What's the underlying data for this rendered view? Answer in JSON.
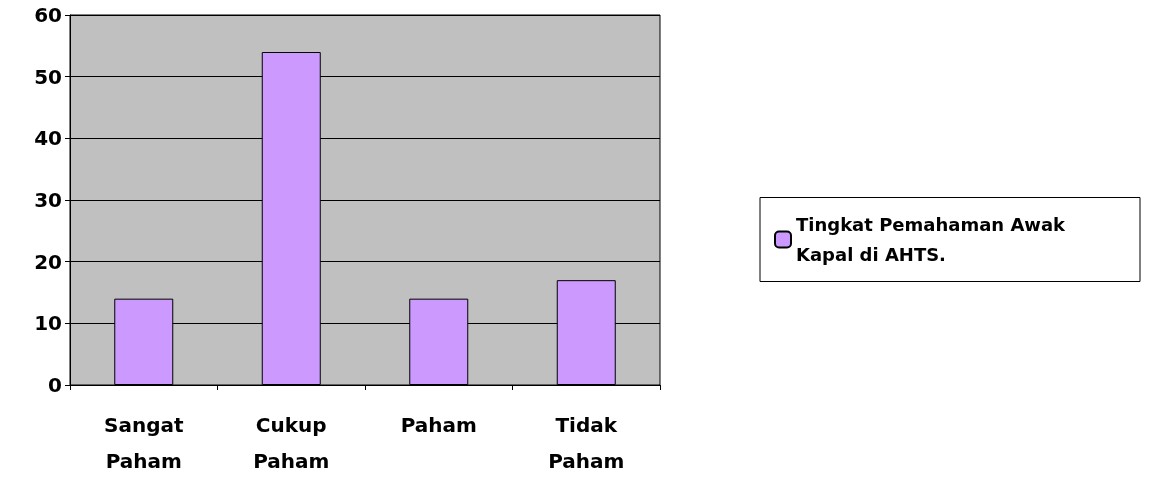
{
  "chart_data": {
    "type": "bar",
    "categories": [
      "Sangat\nPaham",
      "Cukup\nPaham",
      "Paham",
      "Tidak\nPaham"
    ],
    "series": [
      {
        "name": "Tingkat Pemahaman Awak Kapal di AHTS.",
        "color": "#cc99ff",
        "values": [
          14,
          54,
          14,
          17
        ]
      }
    ],
    "ylim": [
      0,
      60
    ],
    "yticks": [
      0,
      10,
      20,
      30,
      40,
      50,
      60
    ],
    "grid": "y",
    "legend": "right"
  }
}
